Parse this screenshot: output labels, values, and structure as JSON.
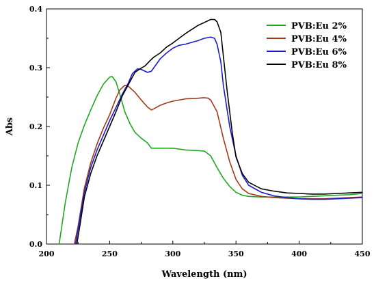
{
  "chart_data": {
    "type": "line",
    "xlabel": "Wavelength (nm)",
    "ylabel": "Abs",
    "xlim": [
      200,
      450
    ],
    "ylim": [
      0.0,
      0.4
    ],
    "x_ticks": [
      200,
      250,
      300,
      350,
      400,
      450
    ],
    "x_tick_labels": [
      "200",
      "250",
      "300",
      "350",
      "400",
      "450"
    ],
    "y_ticks": [
      0.0,
      0.1,
      0.2,
      0.3,
      0.4
    ],
    "y_tick_labels": [
      "0.0",
      "0.1",
      "0.2",
      "0.3",
      "0.4"
    ],
    "grid": false,
    "legend_position": "top-right",
    "series": [
      {
        "name": "PVB:Eu 2%",
        "color": "#1fa81f",
        "x": [
          210,
          215,
          220,
          225,
          230,
          235,
          240,
          245,
          250,
          252,
          255,
          258,
          262,
          266,
          270,
          275,
          280,
          283,
          290,
          300,
          310,
          320,
          325,
          330,
          335,
          340,
          345,
          350,
          355,
          360,
          370,
          380,
          390,
          400,
          410,
          420,
          430,
          440,
          450
        ],
        "y": [
          0.0,
          0.072,
          0.13,
          0.172,
          0.202,
          0.228,
          0.252,
          0.272,
          0.284,
          0.285,
          0.276,
          0.255,
          0.225,
          0.205,
          0.19,
          0.18,
          0.172,
          0.163,
          0.163,
          0.163,
          0.16,
          0.159,
          0.158,
          0.15,
          0.13,
          0.112,
          0.098,
          0.088,
          0.083,
          0.081,
          0.08,
          0.08,
          0.08,
          0.08,
          0.081,
          0.082,
          0.083,
          0.084,
          0.086
        ]
      },
      {
        "name": "PVB:Eu 4%",
        "color": "#a0381a",
        "x": [
          222,
          225,
          230,
          235,
          240,
          245,
          250,
          255,
          258,
          262,
          265,
          270,
          275,
          280,
          283,
          285,
          290,
          295,
          300,
          310,
          320,
          325,
          328,
          330,
          335,
          340,
          345,
          350,
          355,
          360,
          370,
          380,
          390,
          400,
          410,
          420,
          430,
          440,
          450
        ],
        "y": [
          0.0,
          0.03,
          0.095,
          0.138,
          0.17,
          0.197,
          0.22,
          0.248,
          0.262,
          0.27,
          0.268,
          0.258,
          0.245,
          0.233,
          0.228,
          0.23,
          0.236,
          0.24,
          0.243,
          0.247,
          0.248,
          0.249,
          0.248,
          0.245,
          0.225,
          0.18,
          0.14,
          0.11,
          0.094,
          0.086,
          0.081,
          0.079,
          0.078,
          0.077,
          0.077,
          0.077,
          0.078,
          0.079,
          0.08
        ]
      },
      {
        "name": "PVB:Eu 6%",
        "color": "#1a1acc",
        "x": [
          223,
          225,
          230,
          235,
          240,
          245,
          250,
          255,
          260,
          265,
          268,
          272,
          275,
          280,
          283,
          285,
          290,
          295,
          300,
          305,
          310,
          315,
          320,
          325,
          330,
          333,
          335,
          338,
          340,
          345,
          350,
          355,
          360,
          370,
          380,
          390,
          400,
          410,
          420,
          430,
          440,
          450
        ],
        "y": [
          0.0,
          0.025,
          0.088,
          0.13,
          0.16,
          0.185,
          0.21,
          0.232,
          0.255,
          0.275,
          0.29,
          0.298,
          0.297,
          0.292,
          0.294,
          0.3,
          0.315,
          0.325,
          0.333,
          0.338,
          0.34,
          0.343,
          0.346,
          0.35,
          0.352,
          0.35,
          0.34,
          0.31,
          0.27,
          0.2,
          0.15,
          0.117,
          0.1,
          0.088,
          0.082,
          0.079,
          0.077,
          0.076,
          0.076,
          0.077,
          0.078,
          0.079
        ]
      },
      {
        "name": "PVB:Eu 8%",
        "color": "#000000",
        "x": [
          224,
          226,
          230,
          235,
          240,
          245,
          250,
          255,
          260,
          265,
          270,
          274,
          278,
          282,
          285,
          290,
          295,
          300,
          305,
          310,
          315,
          320,
          325,
          330,
          333,
          335,
          338,
          340,
          343,
          347,
          350,
          355,
          360,
          370,
          380,
          390,
          400,
          410,
          420,
          430,
          440,
          450
        ],
        "y": [
          0.0,
          0.025,
          0.08,
          0.12,
          0.15,
          0.175,
          0.2,
          0.225,
          0.252,
          0.272,
          0.292,
          0.298,
          0.303,
          0.312,
          0.318,
          0.325,
          0.335,
          0.342,
          0.35,
          0.358,
          0.365,
          0.372,
          0.377,
          0.382,
          0.382,
          0.378,
          0.36,
          0.32,
          0.26,
          0.19,
          0.148,
          0.12,
          0.105,
          0.094,
          0.09,
          0.087,
          0.086,
          0.085,
          0.085,
          0.086,
          0.087,
          0.088
        ]
      }
    ]
  }
}
